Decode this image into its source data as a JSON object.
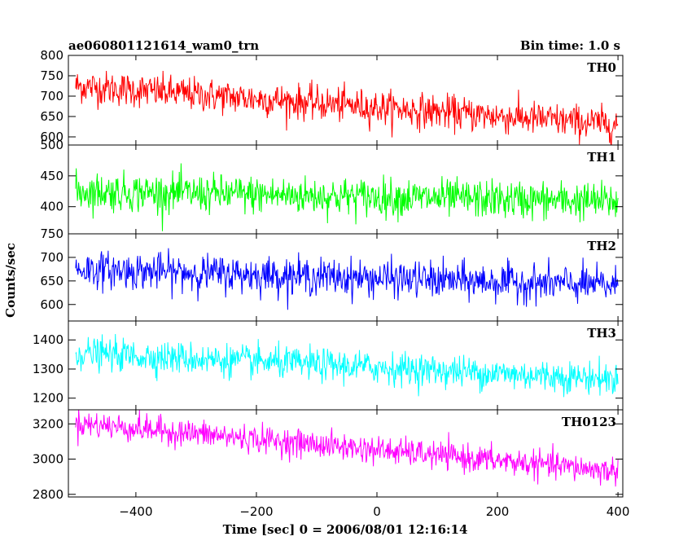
{
  "title_left": "ae060801121614_wam0_trn",
  "title_right": "Bin time: 1.0 s",
  "chart_data": {
    "type": "line",
    "xlabel": "Time [sec] 0 = 2006/08/01 12:16:14",
    "ylabel": "Counts/sec",
    "xlim": [
      -512,
      408
    ],
    "xticks": [
      -400,
      -200,
      0,
      200,
      400
    ],
    "panels": [
      {
        "name": "TH0",
        "color": "#ff0000",
        "ylim": [
          580,
          800
        ],
        "yticks": [
          600,
          650,
          700,
          750,
          800
        ],
        "trend": [
          725,
          630
        ],
        "noise": 38
      },
      {
        "name": "TH1",
        "color": "#00ff00",
        "ylim": [
          356,
          500
        ],
        "yticks": [
          400,
          450,
          500
        ],
        "trend": [
          425,
          408
        ],
        "noise": 28
      },
      {
        "name": "TH2",
        "color": "#0000ff",
        "ylim": [
          565,
          750
        ],
        "yticks": [
          600,
          650,
          700,
          750
        ],
        "trend": [
          675,
          640
        ],
        "noise": 35
      },
      {
        "name": "TH3",
        "color": "#00ffff",
        "ylim": [
          1160,
          1465
        ],
        "yticks": [
          1200,
          1300,
          1400
        ],
        "trend": [
          1355,
          1265
        ],
        "noise": 50
      },
      {
        "name": "TH0123",
        "color": "#ff00ff",
        "ylim": [
          2785,
          3280
        ],
        "yticks": [
          2800,
          3000,
          3200
        ],
        "trend": [
          3205,
          2930
        ],
        "noise": 70
      }
    ]
  }
}
